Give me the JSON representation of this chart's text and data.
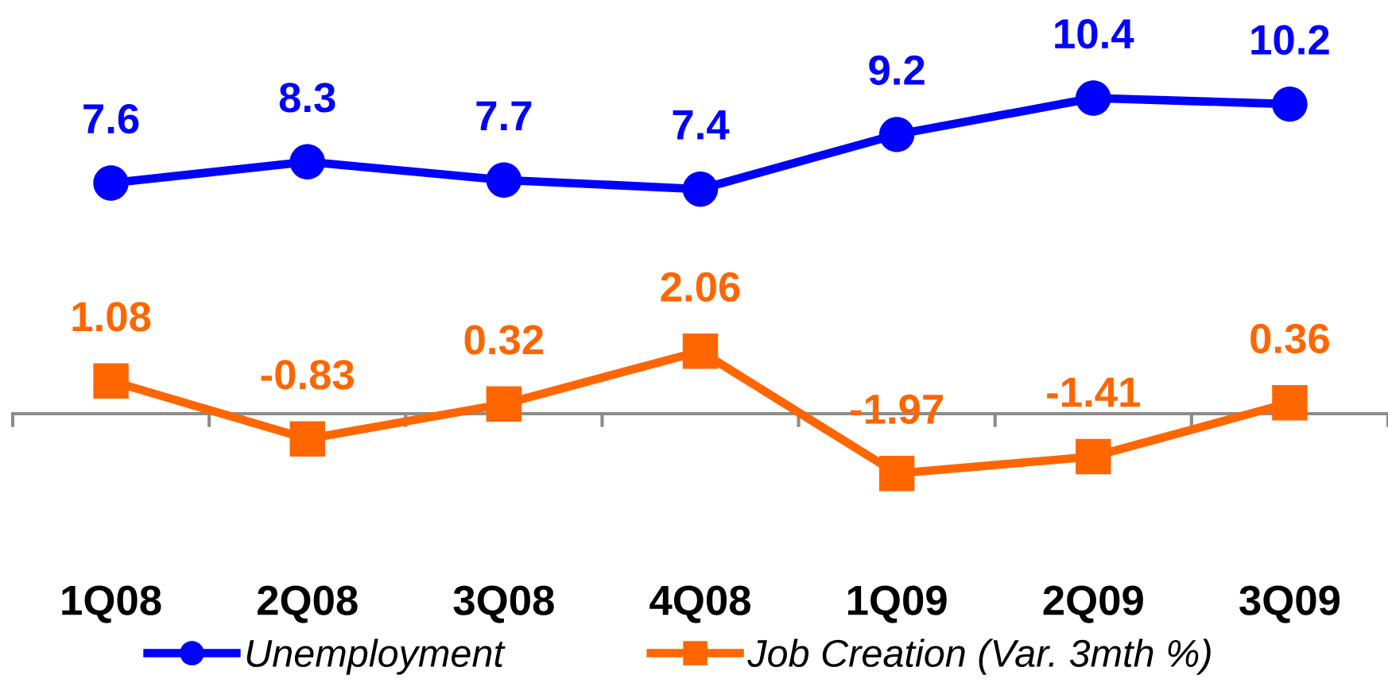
{
  "chart_data": {
    "type": "line",
    "categories": [
      "1Q08",
      "2Q08",
      "3Q08",
      "4Q08",
      "1Q09",
      "2Q09",
      "3Q09"
    ],
    "series": [
      {
        "name": "Unemployment",
        "color": "#0000ff",
        "marker": "circle",
        "values": [
          7.6,
          8.3,
          7.7,
          7.4,
          9.2,
          10.4,
          10.2
        ]
      },
      {
        "name": "Job Creation (Var. 3mth %)",
        "color": "#ff6600",
        "marker": "square",
        "values": [
          1.08,
          -0.83,
          0.32,
          2.06,
          -1.97,
          -1.41,
          0.36
        ]
      }
    ],
    "tick_labels": "x",
    "data_labels": true,
    "legend": "bottom"
  }
}
